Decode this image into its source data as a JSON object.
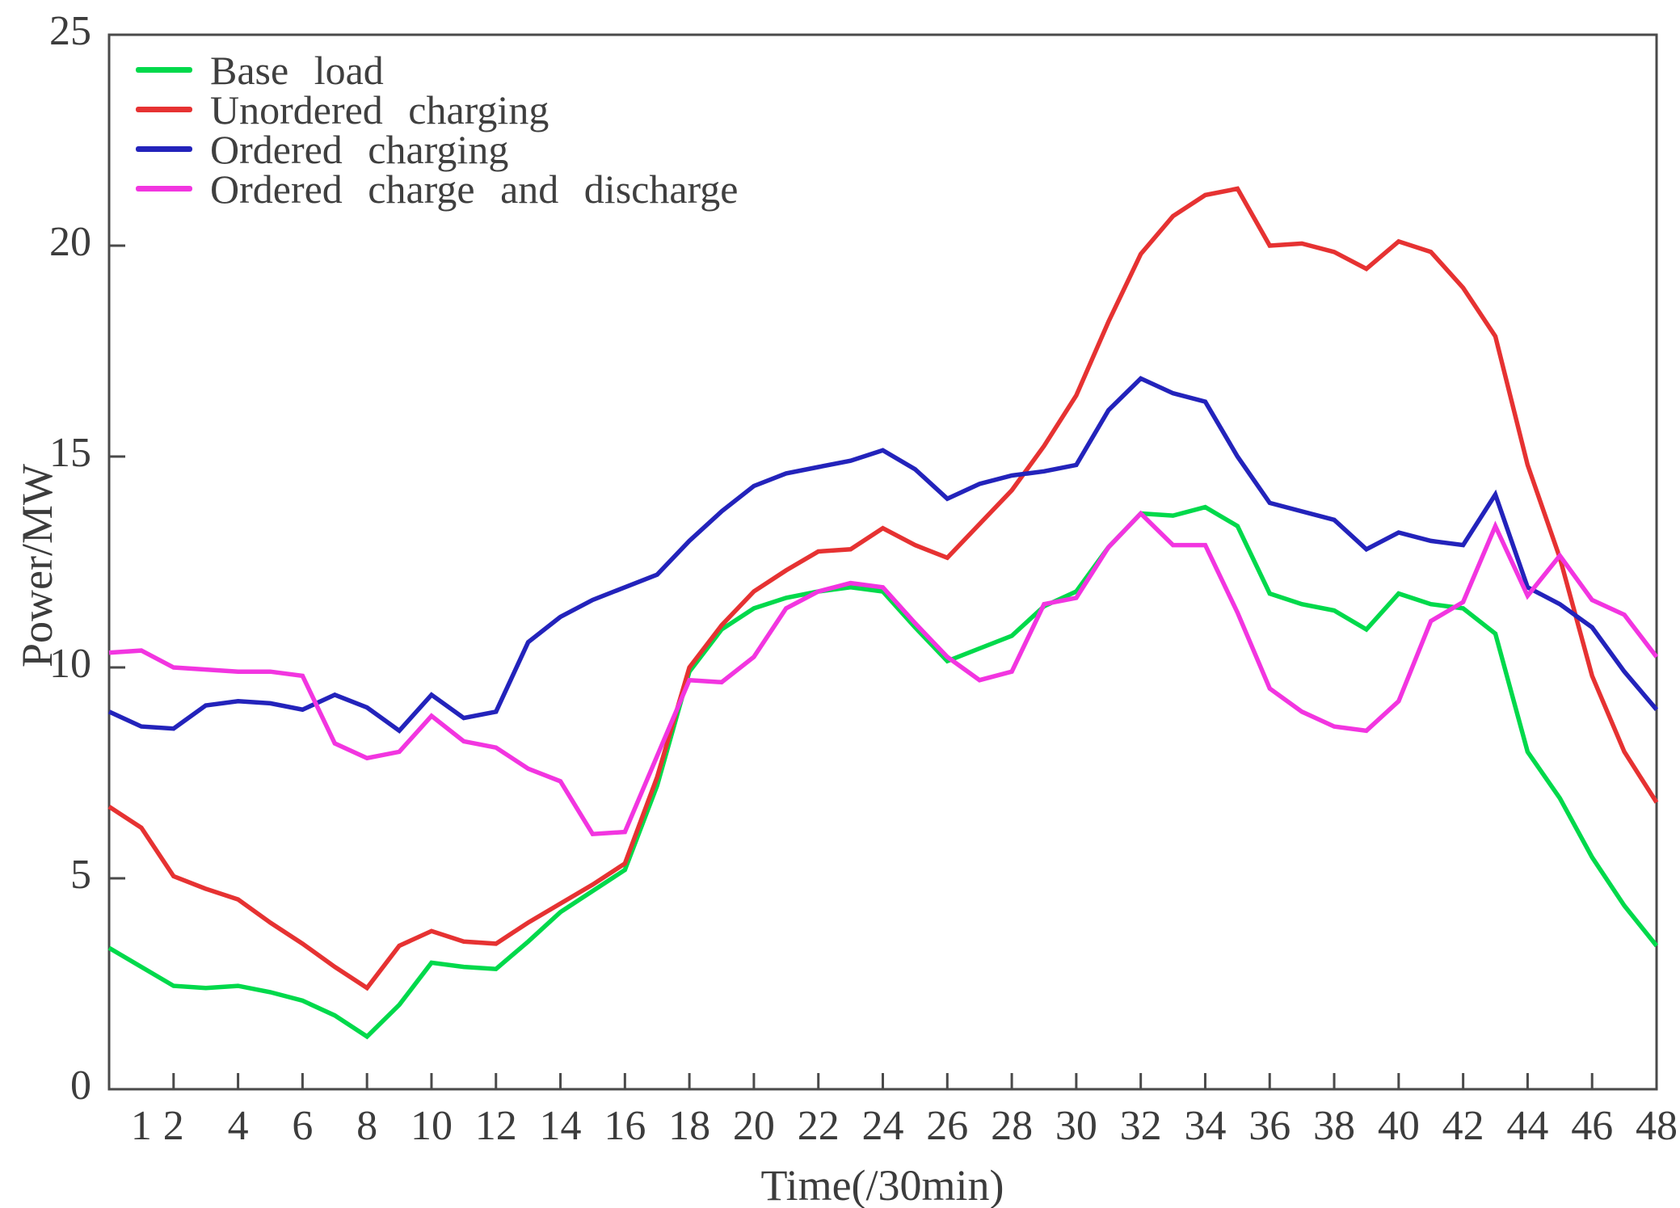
{
  "chart_data": {
    "type": "line",
    "title": "",
    "xlabel": "Time(/30min)",
    "ylabel": "Power/MW",
    "x_range": [
      0,
      48
    ],
    "ylim": [
      0,
      25
    ],
    "grid": false,
    "legend_position": "top-left-inside",
    "x_tick_labels": [
      "1",
      "2",
      "4",
      "6",
      "8",
      "10",
      "12",
      "14",
      "16",
      "18",
      "20",
      "22",
      "24",
      "26",
      "28",
      "30",
      "32",
      "34",
      "36",
      "38",
      "40",
      "42",
      "44",
      "46",
      "48"
    ],
    "x_tick_positions": [
      1,
      2,
      4,
      6,
      8,
      10,
      12,
      14,
      16,
      18,
      20,
      22,
      24,
      26,
      28,
      30,
      32,
      34,
      36,
      38,
      40,
      42,
      44,
      46,
      48
    ],
    "y_tick_labels": [
      "0",
      "5",
      "10",
      "15",
      "20",
      "25"
    ],
    "y_tick_positions": [
      0,
      5,
      10,
      15,
      20,
      25
    ],
    "axis_color": "#4a4a4a",
    "text_color": "#3c3c3c",
    "x": [
      0,
      1,
      2,
      3,
      4,
      5,
      6,
      7,
      8,
      9,
      10,
      11,
      12,
      13,
      14,
      15,
      16,
      17,
      18,
      19,
      20,
      21,
      22,
      23,
      24,
      25,
      26,
      27,
      28,
      29,
      30,
      31,
      32,
      33,
      34,
      35,
      36,
      37,
      38,
      39,
      40,
      41,
      42,
      43,
      44,
      45,
      46,
      47,
      48
    ],
    "series": [
      {
        "name": "Base load",
        "color": "#00d94b",
        "values": [
          3.35,
          2.9,
          2.45,
          2.4,
          2.45,
          2.3,
          2.1,
          1.75,
          1.25,
          2.0,
          3.0,
          2.9,
          2.85,
          3.5,
          4.2,
          4.7,
          5.2,
          7.2,
          9.9,
          10.9,
          11.4,
          11.65,
          11.8,
          11.9,
          11.8,
          10.95,
          10.15,
          10.45,
          10.75,
          11.45,
          11.8,
          12.85,
          13.65,
          13.6,
          13.8,
          13.35,
          11.75,
          11.5,
          11.35,
          10.9,
          11.75,
          11.5,
          11.4,
          10.8,
          8.0,
          6.9,
          5.5,
          4.35,
          3.4
        ]
      },
      {
        "name": "Unordered charging",
        "color": "#e63232",
        "values": [
          6.7,
          6.2,
          5.05,
          4.75,
          4.5,
          3.95,
          3.45,
          2.9,
          2.4,
          3.4,
          3.75,
          3.5,
          3.45,
          3.95,
          4.4,
          4.85,
          5.35,
          7.4,
          10.0,
          11.0,
          11.8,
          12.3,
          12.75,
          12.8,
          13.3,
          12.9,
          12.6,
          13.4,
          14.2,
          15.25,
          16.45,
          18.2,
          19.8,
          20.7,
          21.2,
          21.35,
          20.0,
          20.05,
          19.85,
          19.45,
          20.1,
          19.85,
          19.0,
          17.85,
          14.8,
          12.6,
          9.8,
          8.0,
          6.8
        ]
      },
      {
        "name": "Ordered charging",
        "color": "#2323bb",
        "values": [
          8.95,
          8.6,
          8.55,
          9.1,
          9.2,
          9.15,
          9.0,
          9.35,
          9.05,
          8.5,
          9.35,
          8.8,
          8.95,
          10.6,
          11.2,
          11.6,
          11.9,
          12.2,
          13.0,
          13.7,
          14.3,
          14.6,
          14.75,
          14.9,
          15.15,
          14.7,
          14.0,
          14.35,
          14.55,
          14.65,
          14.8,
          16.1,
          16.85,
          16.5,
          16.3,
          15.0,
          13.9,
          13.7,
          13.5,
          12.8,
          13.2,
          13.0,
          12.9,
          14.1,
          11.9,
          11.5,
          10.95,
          9.9,
          9.0
        ]
      },
      {
        "name": "Ordered charge and discharge",
        "color": "#f235e0",
        "values": [
          10.35,
          10.4,
          10.0,
          9.95,
          9.9,
          9.9,
          9.8,
          8.2,
          7.85,
          8.0,
          8.85,
          8.25,
          8.1,
          7.6,
          7.3,
          6.05,
          6.1,
          7.9,
          9.7,
          9.65,
          10.25,
          11.4,
          11.8,
          12.0,
          11.9,
          11.05,
          10.25,
          9.7,
          9.9,
          11.5,
          11.65,
          12.85,
          13.65,
          12.9,
          12.9,
          11.3,
          9.5,
          8.95,
          8.6,
          8.5,
          9.2,
          11.1,
          11.55,
          13.35,
          11.7,
          12.65,
          11.6,
          11.25,
          10.25
        ]
      }
    ]
  }
}
